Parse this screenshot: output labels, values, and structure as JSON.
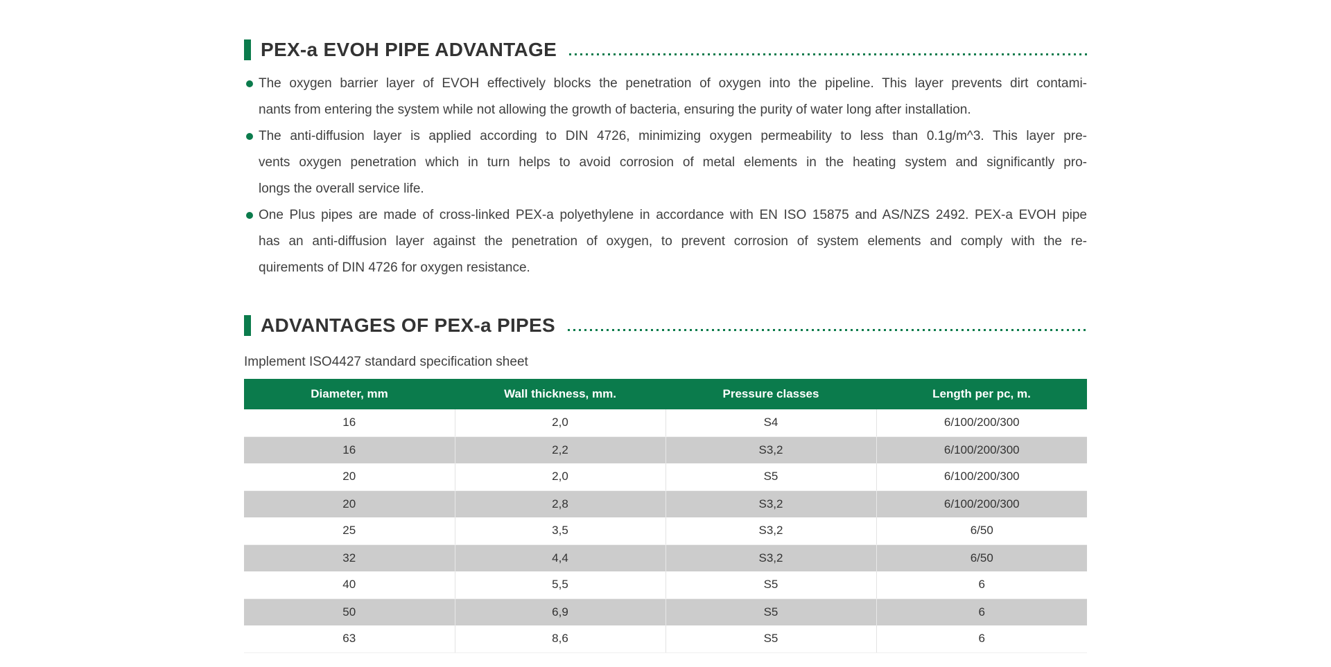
{
  "page": {
    "background": "#ffffff",
    "text_color": "#3f3f3f",
    "accent_green": "#0b7b4c",
    "row_alt_gray": "#cccccc"
  },
  "sections": [
    {
      "title": "PEX-a EVOH PIPE ADVANTAGE",
      "bullets": [
        {
          "lines": [
            "The oxygen barrier layer of EVOH effectively blocks the penetration of oxygen into the pipeline. This layer prevents dirt contami-",
            "nants from entering the system while not allowing the growth of bacteria, ensuring the purity of water long after installation."
          ]
        },
        {
          "lines": [
            "The anti-diffusion layer is applied according to DIN 4726, minimizing oxygen permeability to less than 0.1g/m^3. This layer pre-",
            "vents oxygen penetration which in turn helps to avoid corrosion of metal elements in the heating system and significantly pro-",
            "longs the overall service life."
          ]
        },
        {
          "lines": [
            "One Plus pipes are made of cross-linked PEX-a polyethylene in accordance with EN ISO 15875 and AS/NZS 2492. PEX-a EVOH pipe",
            "has an anti-diffusion layer against the penetration of oxygen, to prevent corrosion of system elements and comply with the re-",
            "quirements of DIN 4726 for oxygen resistance."
          ]
        }
      ]
    },
    {
      "title": "ADVANTAGES OF PEX-a PIPES",
      "subtitle": "Implement ISO4427 standard specification sheet",
      "table": {
        "headers": [
          "Diameter, mm",
          "Wall thickness, mm.",
          "Pressure classes",
          "Length per pc, m."
        ],
        "rows": [
          [
            "16",
            "2,0",
            "S4",
            "6/100/200/300"
          ],
          [
            "16",
            "2,2",
            "S3,2",
            "6/100/200/300"
          ],
          [
            "20",
            "2,0",
            "S5",
            "6/100/200/300"
          ],
          [
            "20",
            "2,8",
            "S3,2",
            "6/100/200/300"
          ],
          [
            "25",
            "3,5",
            "S3,2",
            "6/50"
          ],
          [
            "32",
            "4,4",
            "S3,2",
            "6/50"
          ],
          [
            "40",
            "5,5",
            "S5",
            "6"
          ],
          [
            "50",
            "6,9",
            "S5",
            "6"
          ],
          [
            "63",
            "8,6",
            "S5",
            "6"
          ]
        ]
      }
    }
  ]
}
